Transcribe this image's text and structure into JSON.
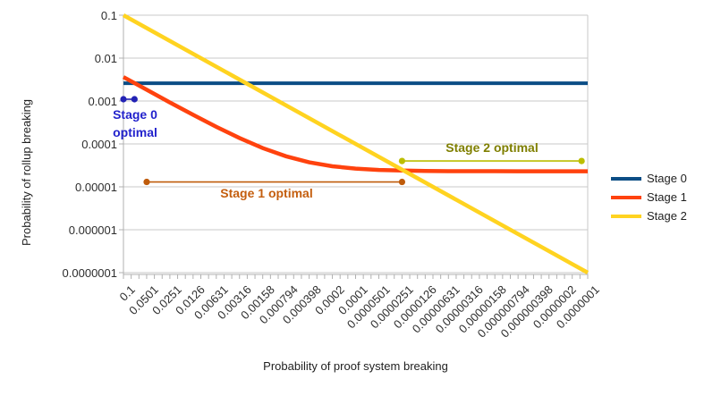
{
  "chart_data": {
    "type": "line",
    "title": "",
    "xlabel": "Probability of proof system breaking",
    "ylabel": "Probability of rollup breaking",
    "x_scale": "log",
    "y_scale": "log",
    "xlim": [
      0.1,
      1e-07
    ],
    "ylim": [
      1e-07,
      0.1
    ],
    "grid": true,
    "legend_position": "right",
    "x_tick_labels": [
      "0.1",
      "0.0501",
      "0.0251",
      "0.0126",
      "0.00631",
      "0.00316",
      "0.00158",
      "0.000794",
      "0.000398",
      "0.0002",
      "0.0001",
      "0.0000501",
      "0.0000251",
      "0.0000126",
      "0.00000631",
      "0.00000316",
      "0.00000158",
      "0.000000794",
      "0.000000398",
      "0.0000002",
      "0.0000001"
    ],
    "y_tick_labels": [
      "0.1",
      "0.01",
      "0.001",
      "0.0001",
      "0.00001",
      "0.000001",
      "0.0000001"
    ],
    "series": [
      {
        "name": "Stage 0",
        "color": "#0b4d85",
        "points": [
          [
            0.1,
            0.0026
          ],
          [
            1e-07,
            0.0026
          ]
        ]
      },
      {
        "name": "Stage 1",
        "color": "#ff420e",
        "points": [
          [
            0.1,
            0.00362
          ],
          [
            0.0501,
            0.00183
          ],
          [
            0.0251,
            0.000927
          ],
          [
            0.0126,
            0.000477
          ],
          [
            0.00631,
            0.00025
          ],
          [
            0.00316,
            0.000137
          ],
          [
            0.00158,
            7.99e-05
          ],
          [
            0.000794,
            5.16e-05
          ],
          [
            0.000398,
            3.73e-05
          ],
          [
            0.0002,
            3.02e-05
          ],
          [
            0.0001,
            2.66e-05
          ],
          [
            5.01e-05,
            2.48e-05
          ],
          [
            2.51e-05,
            2.39e-05
          ],
          [
            1.26e-05,
            2.35e-05
          ],
          [
            6.31e-06,
            2.32e-05
          ],
          [
            3.16e-06,
            2.31e-05
          ],
          [
            1.58e-06,
            2.31e-05
          ],
          [
            7.94e-07,
            2.3e-05
          ],
          [
            3.98e-07,
            2.3e-05
          ],
          [
            2e-07,
            2.3e-05
          ],
          [
            1e-07,
            2.3e-05
          ]
        ]
      },
      {
        "name": "Stage 2",
        "color": "#ffd320",
        "points": [
          [
            0.1,
            0.1
          ],
          [
            1e-07,
            1e-07
          ]
        ]
      }
    ],
    "annotations": [
      {
        "name": "stage0",
        "label": "Stage 0 optimal",
        "color_text": "#2222cc",
        "color_marker": "#2222b4",
        "y": 0.0011,
        "x_from": 0.1,
        "x_to": 0.072
      },
      {
        "name": "stage1",
        "label": "Stage 1 optimal",
        "color_text": "#c45e0e",
        "color_marker": "#bf5b0a",
        "y": 1.3e-05,
        "x_from": 0.0501,
        "x_to": 2.51e-05
      },
      {
        "name": "stage2",
        "label": "Stage 2 optimal",
        "color_text": "#7f7f00",
        "color_marker": "#bcbe00",
        "y": 4e-05,
        "x_from": 2.51e-05,
        "x_to": 1.2e-07
      }
    ]
  }
}
